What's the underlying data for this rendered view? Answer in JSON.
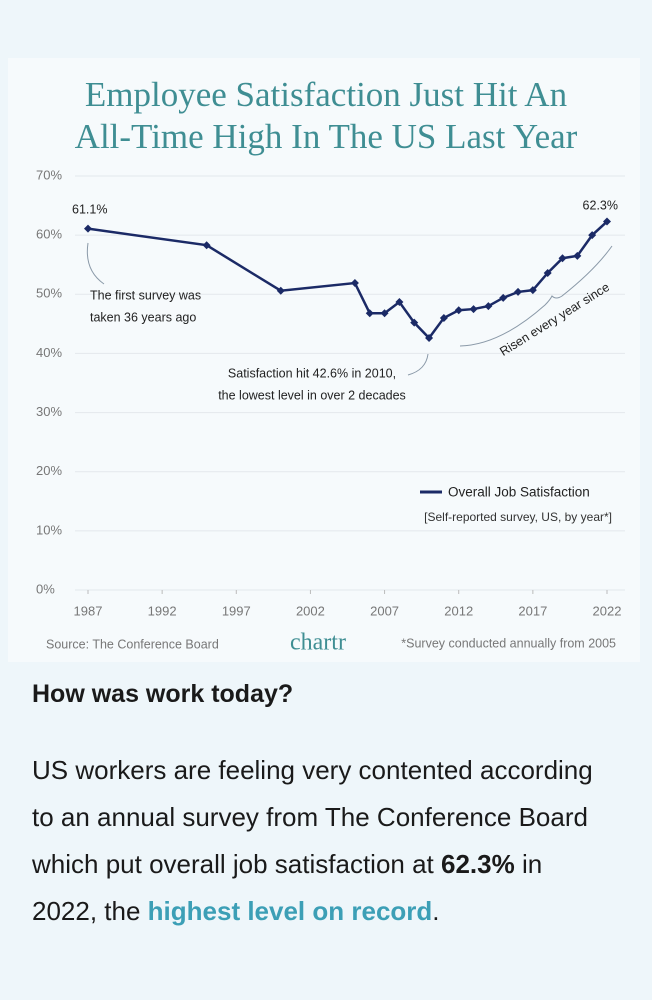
{
  "chart_data": {
    "type": "line",
    "title_lines": [
      "Employee Satisfaction Just Hit An",
      "All-Time High In The US Last Year"
    ],
    "x": [
      1987,
      1995,
      2000,
      2005,
      2006,
      2007,
      2008,
      2009,
      2010,
      2011,
      2012,
      2013,
      2014,
      2015,
      2016,
      2017,
      2018,
      2019,
      2020,
      2021,
      2022
    ],
    "series": [
      {
        "name": "Overall Job Satisfaction",
        "color": "#1b2a66",
        "values": [
          61.1,
          58.3,
          50.6,
          51.9,
          46.8,
          46.8,
          48.7,
          45.2,
          42.6,
          46.0,
          47.3,
          47.5,
          48.0,
          49.4,
          50.4,
          50.7,
          53.6,
          56.1,
          56.5,
          60.0,
          62.3
        ]
      }
    ],
    "legend_note": "[Self-reported survey, US, by year*]",
    "xlim": [
      1987,
      2022
    ],
    "xticks": [
      1987,
      1992,
      1997,
      2002,
      2007,
      2012,
      2017,
      2022
    ],
    "ylim": [
      0,
      70
    ],
    "yticks": [
      {
        "value": 0,
        "label": "0%"
      },
      {
        "value": 10,
        "label": "10%"
      },
      {
        "value": 20,
        "label": "20%"
      },
      {
        "value": 30,
        "label": "30%"
      },
      {
        "value": 40,
        "label": "40%"
      },
      {
        "value": 50,
        "label": "50%"
      },
      {
        "value": 60,
        "label": "60%"
      },
      {
        "value": 70,
        "label": "70%"
      }
    ],
    "grid": true,
    "annotations": [
      "61.1%",
      "62.3%",
      "The first survey was",
      "taken 36 years ago",
      "Satisfaction hit 42.6% in 2010,",
      "the lowest level in over 2 decades",
      "Risen every year since"
    ],
    "source": "Source: The Conference Board",
    "brand": "chartr",
    "footnote": "*Survey conducted annually from 2005"
  },
  "article": {
    "heading": "How was work today?",
    "paragraph": [
      "US workers are feeling very contented according to an annual survey from The Conference Board which put overall job satisfaction at ",
      "62.3%",
      " in 2022, the ",
      "highest level on record",
      "."
    ]
  }
}
